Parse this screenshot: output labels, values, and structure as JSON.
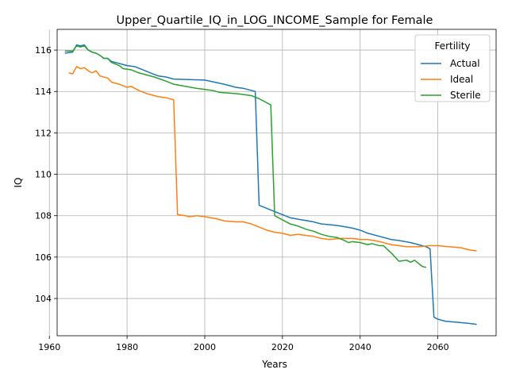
{
  "chart_data": {
    "type": "line",
    "title": "Upper_Quartile_IQ_in_LOG_INCOME_Sample for Female",
    "xlabel": "Years",
    "ylabel": "IQ",
    "xlim": [
      1962,
      2075
    ],
    "ylim": [
      102.2,
      117.0
    ],
    "xticks": [
      1960,
      1980,
      2000,
      2020,
      2040,
      2060
    ],
    "yticks": [
      104,
      106,
      108,
      110,
      112,
      114,
      116
    ],
    "grid": true,
    "legend": {
      "title": "Fertility",
      "placement": "top-right"
    },
    "series": [
      {
        "name": "Actual",
        "color": "#1f77b4",
        "points": [
          [
            1964,
            115.85
          ],
          [
            1966,
            115.9
          ],
          [
            1967,
            116.25
          ],
          [
            1968,
            116.2
          ],
          [
            1969,
            116.25
          ],
          [
            1970,
            116.0
          ],
          [
            1971,
            115.9
          ],
          [
            1972,
            115.85
          ],
          [
            1973,
            115.75
          ],
          [
            1974,
            115.6
          ],
          [
            1975,
            115.6
          ],
          [
            1976,
            115.45
          ],
          [
            1978,
            115.35
          ],
          [
            1980,
            115.25
          ],
          [
            1982,
            115.2
          ],
          [
            1984,
            115.05
          ],
          [
            1986,
            114.9
          ],
          [
            1988,
            114.75
          ],
          [
            1990,
            114.7
          ],
          [
            1992,
            114.6
          ],
          [
            1995,
            114.58
          ],
          [
            2000,
            114.55
          ],
          [
            2005,
            114.35
          ],
          [
            2008,
            114.2
          ],
          [
            2010,
            114.15
          ],
          [
            2012,
            114.05
          ],
          [
            2013,
            114.0
          ],
          [
            2014,
            108.5
          ],
          [
            2016,
            108.35
          ],
          [
            2018,
            108.2
          ],
          [
            2020,
            108.05
          ],
          [
            2022,
            107.9
          ],
          [
            2025,
            107.8
          ],
          [
            2028,
            107.7
          ],
          [
            2030,
            107.6
          ],
          [
            2033,
            107.55
          ],
          [
            2035,
            107.5
          ],
          [
            2038,
            107.4
          ],
          [
            2040,
            107.3
          ],
          [
            2042,
            107.15
          ],
          [
            2045,
            107.0
          ],
          [
            2048,
            106.85
          ],
          [
            2050,
            106.8
          ],
          [
            2053,
            106.7
          ],
          [
            2055,
            106.6
          ],
          [
            2057,
            106.5
          ],
          [
            2058,
            106.4
          ],
          [
            2059,
            103.1
          ],
          [
            2060,
            103.0
          ],
          [
            2062,
            102.9
          ],
          [
            2065,
            102.85
          ],
          [
            2068,
            102.8
          ],
          [
            2070,
            102.75
          ]
        ]
      },
      {
        "name": "Ideal",
        "color": "#ff7f0e",
        "points": [
          [
            1965,
            114.9
          ],
          [
            1966,
            114.85
          ],
          [
            1967,
            115.2
          ],
          [
            1968,
            115.1
          ],
          [
            1969,
            115.15
          ],
          [
            1970,
            115.0
          ],
          [
            1971,
            114.9
          ],
          [
            1972,
            115.0
          ],
          [
            1973,
            114.75
          ],
          [
            1975,
            114.65
          ],
          [
            1976,
            114.45
          ],
          [
            1978,
            114.35
          ],
          [
            1980,
            114.2
          ],
          [
            1981,
            114.25
          ],
          [
            1983,
            114.05
          ],
          [
            1985,
            113.9
          ],
          [
            1988,
            113.75
          ],
          [
            1990,
            113.7
          ],
          [
            1992,
            113.6
          ],
          [
            1993,
            108.05
          ],
          [
            1995,
            108.0
          ],
          [
            1996,
            107.95
          ],
          [
            1998,
            108.0
          ],
          [
            2000,
            107.95
          ],
          [
            2003,
            107.85
          ],
          [
            2005,
            107.75
          ],
          [
            2008,
            107.7
          ],
          [
            2010,
            107.7
          ],
          [
            2012,
            107.6
          ],
          [
            2014,
            107.45
          ],
          [
            2016,
            107.3
          ],
          [
            2018,
            107.2
          ],
          [
            2020,
            107.15
          ],
          [
            2022,
            107.05
          ],
          [
            2024,
            107.1
          ],
          [
            2026,
            107.05
          ],
          [
            2028,
            107.0
          ],
          [
            2030,
            106.9
          ],
          [
            2032,
            106.85
          ],
          [
            2035,
            106.9
          ],
          [
            2038,
            106.9
          ],
          [
            2040,
            106.85
          ],
          [
            2042,
            106.85
          ],
          [
            2045,
            106.75
          ],
          [
            2048,
            106.6
          ],
          [
            2050,
            106.55
          ],
          [
            2052,
            106.5
          ],
          [
            2055,
            106.5
          ],
          [
            2058,
            106.55
          ],
          [
            2060,
            106.55
          ],
          [
            2063,
            106.5
          ],
          [
            2066,
            106.45
          ],
          [
            2068,
            106.35
          ],
          [
            2070,
            106.3
          ]
        ]
      },
      {
        "name": "Sterile",
        "color": "#2ca02c",
        "points": [
          [
            1964,
            115.95
          ],
          [
            1966,
            115.95
          ],
          [
            1967,
            116.2
          ],
          [
            1968,
            116.15
          ],
          [
            1969,
            116.2
          ],
          [
            1970,
            116.0
          ],
          [
            1971,
            115.9
          ],
          [
            1972,
            115.85
          ],
          [
            1973,
            115.75
          ],
          [
            1974,
            115.6
          ],
          [
            1975,
            115.6
          ],
          [
            1976,
            115.4
          ],
          [
            1978,
            115.25
          ],
          [
            1979,
            115.1
          ],
          [
            1981,
            115.05
          ],
          [
            1983,
            114.9
          ],
          [
            1985,
            114.8
          ],
          [
            1987,
            114.7
          ],
          [
            1990,
            114.5
          ],
          [
            1992,
            114.35
          ],
          [
            1995,
            114.25
          ],
          [
            1998,
            114.15
          ],
          [
            2000,
            114.1
          ],
          [
            2002,
            114.05
          ],
          [
            2004,
            113.95
          ],
          [
            2008,
            113.9
          ],
          [
            2010,
            113.85
          ],
          [
            2012,
            113.8
          ],
          [
            2014,
            113.65
          ],
          [
            2016,
            113.45
          ],
          [
            2017,
            113.35
          ],
          [
            2018,
            108.0
          ],
          [
            2020,
            107.8
          ],
          [
            2022,
            107.6
          ],
          [
            2024,
            107.5
          ],
          [
            2026,
            107.35
          ],
          [
            2028,
            107.25
          ],
          [
            2030,
            107.1
          ],
          [
            2032,
            107.0
          ],
          [
            2034,
            106.95
          ],
          [
            2036,
            106.8
          ],
          [
            2037,
            106.7
          ],
          [
            2038,
            106.75
          ],
          [
            2040,
            106.7
          ],
          [
            2042,
            106.6
          ],
          [
            2043,
            106.65
          ],
          [
            2045,
            106.55
          ],
          [
            2046,
            106.55
          ],
          [
            2048,
            106.2
          ],
          [
            2050,
            105.8
          ],
          [
            2052,
            105.85
          ],
          [
            2053,
            105.75
          ],
          [
            2054,
            105.85
          ],
          [
            2056,
            105.55
          ],
          [
            2057,
            105.5
          ]
        ]
      }
    ]
  }
}
